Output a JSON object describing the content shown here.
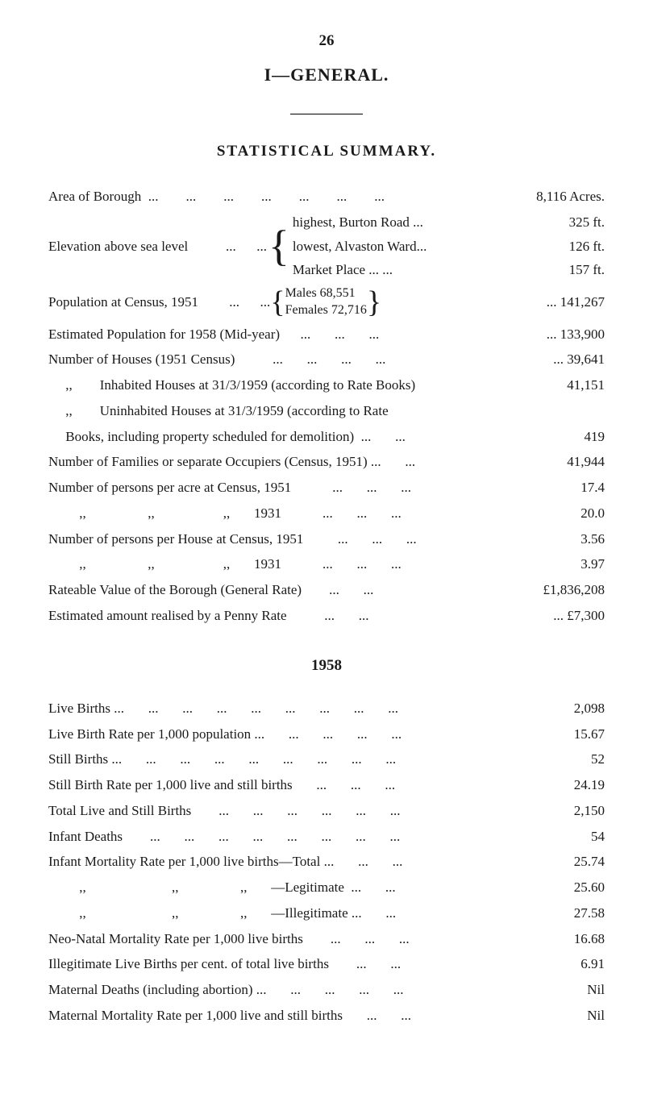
{
  "pageNumber": "26",
  "sectionTitle": "I—GENERAL.",
  "subTitle": "STATISTICAL SUMMARY.",
  "rows": {
    "areaOfBorough": {
      "label": "Area of Borough  ...        ...        ...        ...        ...        ...        ...",
      "value": "8,116  Acres."
    },
    "elevation": {
      "label": "Elevation above sea level           ...      ...",
      "lines": [
        {
          "text": "highest, Burton Road ...",
          "value": "325 ft."
        },
        {
          "text": "lowest, Alvaston Ward...",
          "value": "126 ft."
        },
        {
          "text": "Market Place   ...       ...",
          "value": "157 ft."
        }
      ]
    },
    "population": {
      "label": "Population at Census, 1951         ...      ...",
      "males": "Males     68,551",
      "females": "Females 72,716",
      "value": "...  141,267"
    },
    "estPop": {
      "label": "Estimated Population for 1958 (Mid-year)      ...       ...       ...",
      "value": "... 133,900"
    },
    "houses": {
      "label": "Number of Houses (1951 Census)           ...       ...       ...       ...",
      "value": "...   39,641"
    },
    "inhabited": {
      "label": "     ,,        Inhabited Houses at 31/3/1959 (according to Rate Books)",
      "value": "41,151"
    },
    "uninhabited1": "     ,,        Uninhabited Houses at 31/3/1959 (according to Rate",
    "uninhabited2": {
      "label": "     Books, including property scheduled for demolition)  ...       ...",
      "value": "419"
    },
    "families": {
      "label": "Number of Families or separate Occupiers (Census, 1951) ...       ...",
      "value": "41,944"
    },
    "perAcre51": {
      "label": "Number of persons per acre at Census, 1951            ...       ...       ...",
      "value": "17.4"
    },
    "perAcre31": {
      "label": "         ,,                  ,,                    ,,       1931            ...       ...       ...",
      "value": "20.0"
    },
    "perHouse51": {
      "label": "Number of persons per House at Census, 1951          ...       ...       ...",
      "value": "3.56"
    },
    "perHouse31": {
      "label": "         ,,                  ,,                    ,,       1931            ...       ...       ...",
      "value": "3.97"
    },
    "rateable": {
      "label": "Rateable Value of the Borough (General Rate)        ...       ...",
      "value": "£1,836,208"
    },
    "pennyRate": {
      "label": "Estimated amount realised by a Penny Rate           ...       ...",
      "value": "...   £7,300"
    }
  },
  "yearHeader": "1958",
  "yearRows": {
    "liveBirths": {
      "label": "Live Births ...       ...       ...       ...       ...       ...       ...       ...       ...",
      "value": "2,098"
    },
    "liveBirthRate": {
      "label": "Live Birth Rate per 1,000 population ...       ...       ...       ...       ...",
      "value": "15.67"
    },
    "stillBirths": {
      "label": "Still Births ...       ...       ...       ...       ...       ...       ...       ...       ...",
      "value": "52"
    },
    "stillBirthRate": {
      "label": "Still Birth Rate per 1,000 live and still births       ...       ...       ...",
      "value": "24.19"
    },
    "totalLive": {
      "label": "Total Live and Still Births        ...       ...       ...       ...       ...       ...",
      "value": "2,150"
    },
    "infantDeaths": {
      "label": "Infant Deaths        ...       ...       ...       ...       ...       ...       ...       ...",
      "value": "54"
    },
    "infantMortTotal": {
      "label": "Infant Mortality Rate per 1,000 live births—Total ...       ...       ...",
      "value": "25.74"
    },
    "infantMortLegit": {
      "label": "         ,,                         ,,                  ,,       —Legitimate  ...       ...",
      "value": "25.60"
    },
    "infantMortIllegit": {
      "label": "         ,,                         ,,                  ,,       —Illegitimate ...       ...",
      "value": "27.58"
    },
    "neoNatal": {
      "label": "Neo-Natal Mortality Rate per 1,000 live births        ...       ...       ...",
      "value": "16.68"
    },
    "illegitLive": {
      "label": "Illegitimate Live Births per cent. of total live births        ...       ...",
      "value": "6.91"
    },
    "matDeaths": {
      "label": "Maternal Deaths (including abortion) ...       ...       ...       ...       ...",
      "value": "Nil"
    },
    "matMortRate": {
      "label": "Maternal Mortality Rate per 1,000 live and still births       ...       ...",
      "value": "Nil"
    }
  }
}
